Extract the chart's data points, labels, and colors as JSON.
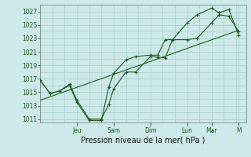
{
  "background_color": "#cce8e8",
  "grid_color": "#aacccc",
  "line_color": "#1a5c1a",
  "xlabel": "Pression niveau de la mer( hPa )",
  "ylim": [
    1010.5,
    1028.0
  ],
  "yticks": [
    1011,
    1013,
    1015,
    1017,
    1019,
    1021,
    1023,
    1025,
    1027
  ],
  "xlim": [
    0,
    8.4
  ],
  "day_labels": [
    "Jeu",
    "Sam",
    "Dim",
    "Lun",
    "Mar",
    "M"
  ],
  "day_positions": [
    1.5,
    3.0,
    4.5,
    6.0,
    7.0,
    8.1
  ],
  "series1_x": [
    0.0,
    0.4,
    0.8,
    1.2,
    1.5,
    2.0,
    2.5,
    2.8,
    3.0,
    3.5,
    3.9,
    4.5,
    4.8,
    5.1,
    5.4,
    6.0,
    6.4,
    7.0,
    7.3,
    7.7,
    8.1
  ],
  "series1_y": [
    1016.8,
    1014.8,
    1015.2,
    1016.2,
    1013.8,
    1011.0,
    1011.0,
    1013.2,
    1015.5,
    1018.0,
    1018.0,
    1020.3,
    1020.2,
    1020.1,
    1022.8,
    1022.8,
    1023.0,
    1025.3,
    1026.5,
    1026.3,
    1024.0
  ],
  "series2_x": [
    0.0,
    0.4,
    0.8,
    1.2,
    1.5,
    2.0,
    2.5,
    2.8,
    3.0,
    3.5,
    3.9,
    4.5,
    4.8,
    5.1,
    5.4,
    6.0,
    6.4,
    7.0,
    7.3,
    7.7,
    8.1
  ],
  "series2_y": [
    1016.8,
    1014.8,
    1015.2,
    1016.0,
    1013.5,
    1010.8,
    1010.8,
    1015.8,
    1017.8,
    1019.8,
    1020.3,
    1020.5,
    1020.5,
    1022.8,
    1022.8,
    1025.3,
    1026.5,
    1027.5,
    1026.8,
    1027.3,
    1023.5
  ],
  "trend_x": [
    0.0,
    8.1
  ],
  "trend_y": [
    1013.8,
    1024.2
  ]
}
